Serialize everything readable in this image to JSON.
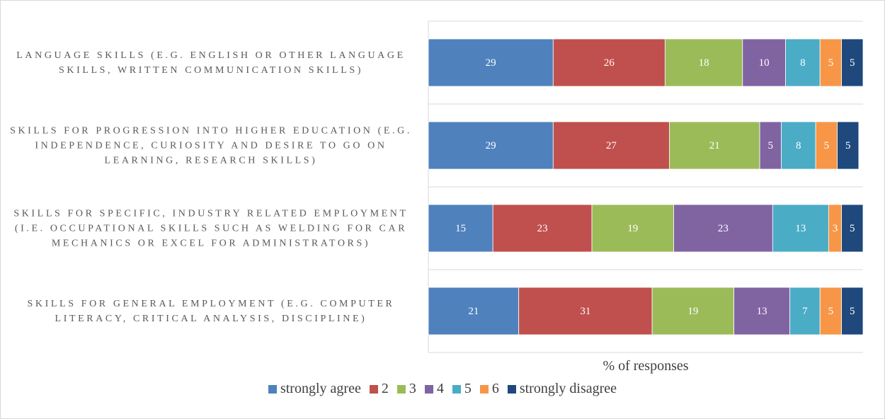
{
  "chart_data": {
    "type": "stacked-barh",
    "x_label": "% of responses",
    "categories": [
      "LANGUAGE SKILLS (E.G. ENGLISH OR OTHER LANGUAGE SKILLS, WRITTEN COMMUNICATION SKILLS)",
      "SKILLS FOR PROGRESSION INTO HIGHER EDUCATION (E.G. INDEPENDENCE, CURIOSITY AND DESIRE TO GO ON LEARNING, RESEARCH SKILLS)",
      "SKILLS FOR SPECIFIC, INDUSTRY RELATED EMPLOYMENT (I.E. OCCUPATIONAL SKILLS SUCH AS WELDING FOR CAR MECHANICS OR EXCEL FOR ADMINISTRATORS)",
      "SKILLS FOR GENERAL EMPLOYMENT (E.G. COMPUTER LITERACY, CRITICAL ANALYSIS, DISCIPLINE)"
    ],
    "series": [
      {
        "name": "strongly agree",
        "color": "#4f81bd",
        "values": [
          29,
          29,
          15,
          21
        ]
      },
      {
        "name": "2",
        "color": "#c0504d",
        "values": [
          26,
          27,
          23,
          31
        ]
      },
      {
        "name": "3",
        "color": "#9bbb59",
        "values": [
          18,
          21,
          19,
          19
        ]
      },
      {
        "name": "4",
        "color": "#8064a2",
        "values": [
          10,
          5,
          23,
          13
        ]
      },
      {
        "name": "5",
        "color": "#4bacc6",
        "values": [
          8,
          8,
          13,
          7
        ]
      },
      {
        "name": "6",
        "color": "#f79646",
        "values": [
          5,
          5,
          3,
          5
        ]
      },
      {
        "name": "strongly disagree",
        "color": "#1f497d",
        "values": [
          5,
          5,
          5,
          5
        ]
      }
    ],
    "xlim": [
      0,
      101
    ],
    "legend": "bottom"
  }
}
